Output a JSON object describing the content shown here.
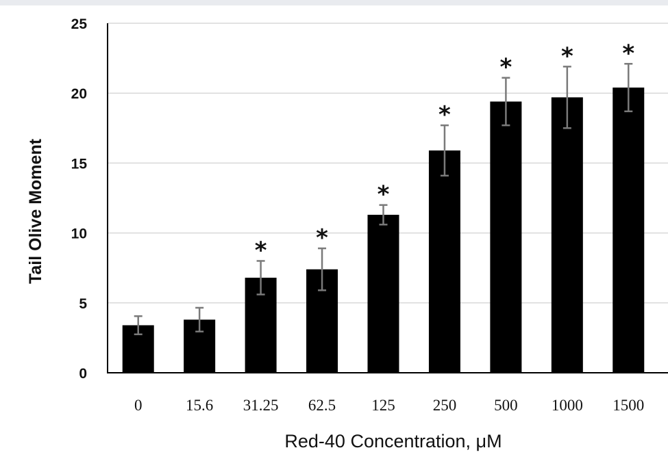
{
  "chart_data": {
    "type": "bar",
    "title": "",
    "xlabel": "Red-40 Concentration, μM",
    "ylabel": "Tail Olive Moment",
    "ylim": [
      0,
      25
    ],
    "yticks": [
      0,
      5,
      10,
      15,
      20,
      25
    ],
    "grid": true,
    "categories": [
      "0",
      "15.6",
      "31.25",
      "62.5",
      "125",
      "250",
      "500",
      "1000",
      "1500"
    ],
    "values": [
      3.4,
      3.8,
      6.8,
      7.4,
      11.3,
      15.9,
      19.4,
      19.7,
      20.4
    ],
    "errors": [
      0.65,
      0.85,
      1.2,
      1.5,
      0.7,
      1.8,
      1.7,
      2.2,
      1.7
    ],
    "significant": [
      false,
      false,
      true,
      true,
      true,
      true,
      true,
      true,
      true
    ],
    "significance_marker": "*",
    "colors": {
      "bar": "#000000",
      "error_bar": "#7a7a7a",
      "grid": "#d9d9d9",
      "axis": "#000000",
      "top_band": "#e9ebef"
    }
  }
}
